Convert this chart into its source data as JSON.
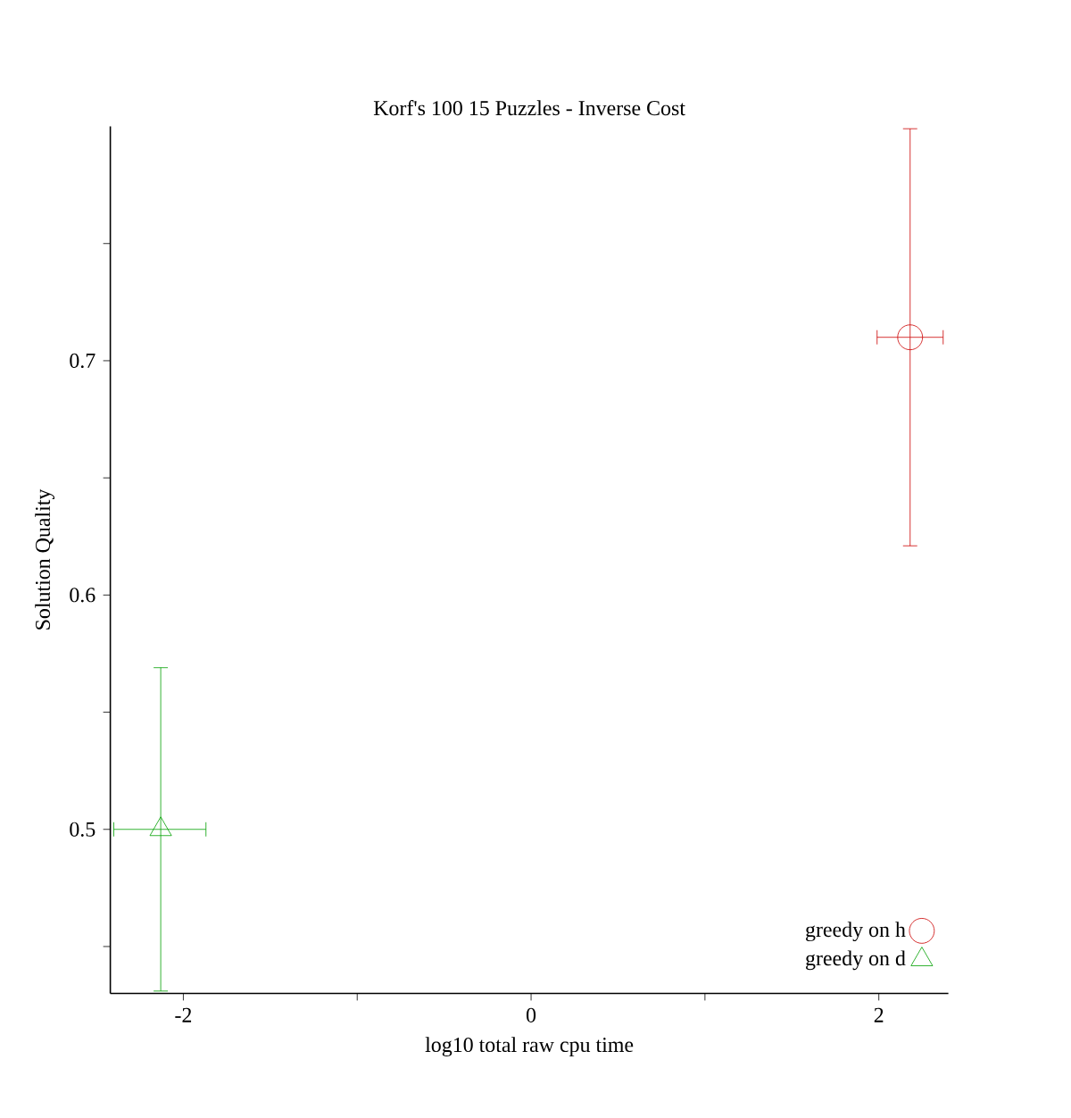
{
  "chart_data": {
    "type": "scatter",
    "title": "Korf's 100 15 Puzzles - Inverse Cost",
    "xlabel": "log10 total raw cpu time",
    "ylabel": "Solution Quality",
    "xlim": [
      -2.42,
      2.4
    ],
    "xticks": [
      -2,
      {
        "value": -1,
        "label": null
      },
      0,
      {
        "value": 1,
        "label": null
      },
      2
    ],
    "ylim": [
      0.43,
      0.8
    ],
    "yticks": [
      {
        "value": 0.45,
        "label": null
      },
      0.5,
      {
        "value": 0.55,
        "label": null
      },
      0.6,
      {
        "value": 0.65,
        "label": null
      },
      0.7,
      {
        "value": 0.75,
        "label": null
      }
    ],
    "grid": false,
    "legend": "bottom right",
    "series": [
      {
        "name": "greedy on h",
        "color": "#cc0000",
        "marker": "circle",
        "x": [
          2.18
        ],
        "values": [
          0.71
        ],
        "errors": [
          [
            0.621,
            0.799
          ]
        ],
        "xerrors": [
          [
            1.99,
            2.37
          ]
        ]
      },
      {
        "name": "greedy on d",
        "color": "#00a000",
        "marker": "triangle",
        "x": [
          -2.13
        ],
        "values": [
          0.5
        ],
        "errors": [
          [
            0.431,
            0.569
          ]
        ],
        "xerrors": [
          [
            -2.4,
            -1.87
          ]
        ]
      }
    ]
  }
}
